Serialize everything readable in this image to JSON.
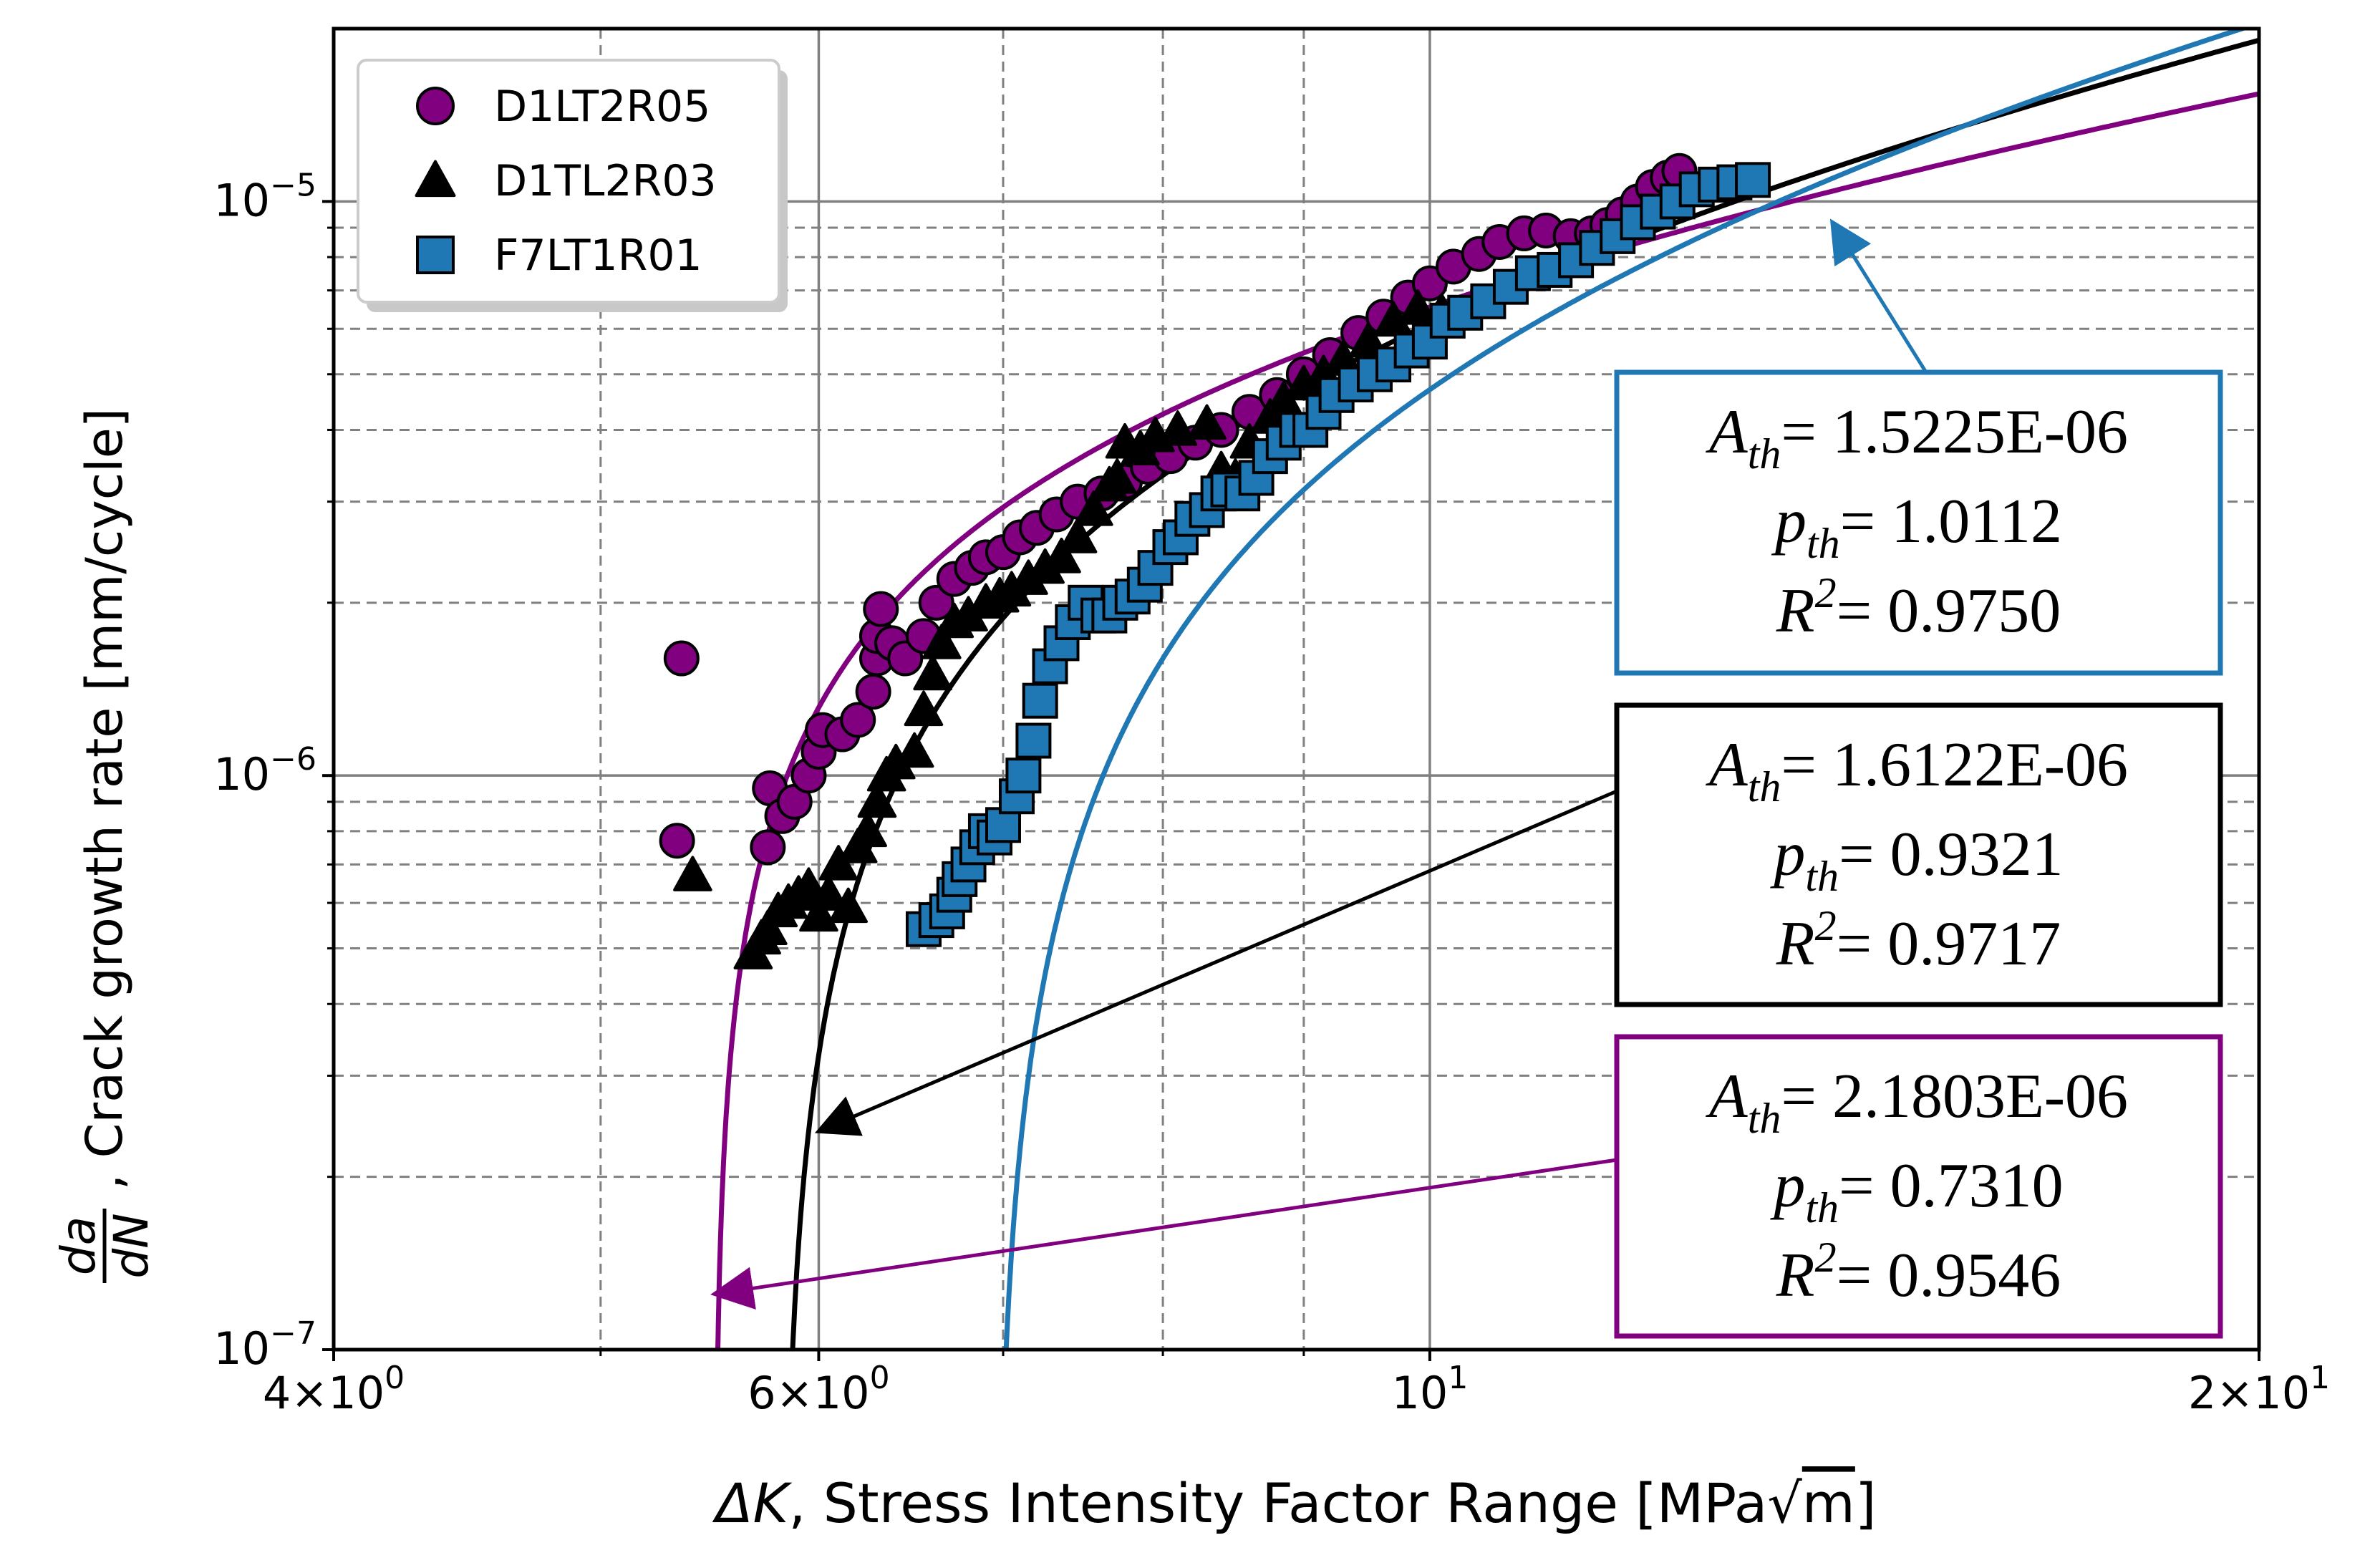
{
  "chart_data": {
    "type": "scatter",
    "xscale": "log",
    "yscale": "log",
    "xlim": [
      4,
      20
    ],
    "ylim": [
      1e-07,
      2e-05
    ],
    "grid": true,
    "legend_position": "top-left",
    "xlabel": {
      "delta": "ΔK",
      "rest": ", Stress Intensity Factor Range [MPa",
      "sqrt": "√",
      "m": "m",
      "close": "]"
    },
    "ylabel": {
      "numerator": "da",
      "denominator": "dN",
      "rest": ", Crack growth rate [mm/cycle]"
    },
    "xticks": [
      {
        "value": 4,
        "mantissa": "4",
        "times": "×",
        "base": "10",
        "exp": "0"
      },
      {
        "value": 6,
        "mantissa": "6",
        "times": "×",
        "base": "10",
        "exp": "0"
      },
      {
        "value": 10,
        "mantissa": "",
        "times": "",
        "base": "10",
        "exp": "1"
      },
      {
        "value": 20,
        "mantissa": "2",
        "times": "×",
        "base": "10",
        "exp": "1"
      }
    ],
    "yticks": [
      {
        "value": 1e-07,
        "base": "10",
        "exp": "−7"
      },
      {
        "value": 1e-06,
        "base": "10",
        "exp": "−6"
      },
      {
        "value": 1e-05,
        "base": "10",
        "exp": "−5"
      }
    ],
    "series": [
      {
        "name": "D1LT2R05",
        "marker": "circle",
        "color": "#800080",
        "points": [
          [
            5.35,
            1.6e-06
          ],
          [
            5.33,
            7.7e-07
          ],
          [
            5.75,
            7.5e-07
          ],
          [
            5.76,
            9.5e-07
          ],
          [
            5.82,
            8.5e-07
          ],
          [
            5.88,
            9e-07
          ],
          [
            5.95,
            1e-06
          ],
          [
            6.0,
            1.1e-06
          ],
          [
            6.02,
            1.2e-06
          ],
          [
            6.12,
            1.18e-06
          ],
          [
            6.2,
            1.25e-06
          ],
          [
            6.28,
            1.4e-06
          ],
          [
            6.3,
            1.6e-06
          ],
          [
            6.3,
            1.75e-06
          ],
          [
            6.32,
            1.95e-06
          ],
          [
            6.38,
            1.7e-06
          ],
          [
            6.45,
            1.6e-06
          ],
          [
            6.55,
            1.75e-06
          ],
          [
            6.62,
            2e-06
          ],
          [
            6.72,
            2.2e-06
          ],
          [
            6.82,
            2.3e-06
          ],
          [
            6.9,
            2.4e-06
          ],
          [
            7.0,
            2.45e-06
          ],
          [
            7.1,
            2.6e-06
          ],
          [
            7.2,
            2.7e-06
          ],
          [
            7.32,
            2.85e-06
          ],
          [
            7.45,
            3e-06
          ],
          [
            7.6,
            3.1e-06
          ],
          [
            7.75,
            3.25e-06
          ],
          [
            7.9,
            3.45e-06
          ],
          [
            8.05,
            3.6e-06
          ],
          [
            8.22,
            3.8e-06
          ],
          [
            8.4,
            4e-06
          ],
          [
            8.6,
            4.3e-06
          ],
          [
            8.8,
            4.6e-06
          ],
          [
            9.0,
            5e-06
          ],
          [
            9.2,
            5.4e-06
          ],
          [
            9.42,
            5.9e-06
          ],
          [
            9.62,
            6.3e-06
          ],
          [
            9.82,
            6.8e-06
          ],
          [
            10.0,
            7.2e-06
          ],
          [
            10.2,
            7.7e-06
          ],
          [
            10.42,
            8.1e-06
          ],
          [
            10.6,
            8.5e-06
          ],
          [
            10.82,
            8.8e-06
          ],
          [
            11.02,
            8.9e-06
          ],
          [
            11.25,
            8.7e-06
          ],
          [
            11.45,
            8.8e-06
          ],
          [
            11.6,
            9.1e-06
          ],
          [
            11.75,
            9.5e-06
          ],
          [
            11.9,
            1e-05
          ],
          [
            12.05,
            1.06e-05
          ],
          [
            12.2,
            1.1e-05
          ],
          [
            12.32,
            1.13e-05
          ]
        ]
      },
      {
        "name": "D1TL2R03",
        "marker": "triangle",
        "color": "#000000",
        "points": [
          [
            5.4,
            6.7e-07
          ],
          [
            5.68,
            4.9e-07
          ],
          [
            5.72,
            5.2e-07
          ],
          [
            5.75,
            5.4e-07
          ],
          [
            5.8,
            5.8e-07
          ],
          [
            5.85,
            6e-07
          ],
          [
            5.9,
            6.2e-07
          ],
          [
            5.95,
            6.4e-07
          ],
          [
            6.0,
            5.7e-07
          ],
          [
            6.05,
            6.2e-07
          ],
          [
            6.1,
            7e-07
          ],
          [
            6.15,
            5.9e-07
          ],
          [
            6.2,
            7.5e-07
          ],
          [
            6.25,
            8e-07
          ],
          [
            6.3,
            9e-07
          ],
          [
            6.35,
            1e-06
          ],
          [
            6.4,
            1.05e-06
          ],
          [
            6.5,
            1.1e-06
          ],
          [
            6.55,
            1.3e-06
          ],
          [
            6.6,
            1.5e-06
          ],
          [
            6.65,
            1.7e-06
          ],
          [
            6.72,
            1.85e-06
          ],
          [
            6.8,
            1.9e-06
          ],
          [
            6.9,
            2e-06
          ],
          [
            6.98,
            2.05e-06
          ],
          [
            7.05,
            2.1e-06
          ],
          [
            7.15,
            2.2e-06
          ],
          [
            7.25,
            2.3e-06
          ],
          [
            7.35,
            2.4e-06
          ],
          [
            7.45,
            2.6e-06
          ],
          [
            7.55,
            2.9e-06
          ],
          [
            7.65,
            3.2e-06
          ],
          [
            7.7,
            3.3e-06
          ],
          [
            7.75,
            3.8e-06
          ],
          [
            7.85,
            3.7e-06
          ],
          [
            7.95,
            3.9e-06
          ],
          [
            8.1,
            4e-06
          ],
          [
            8.3,
            4.1e-06
          ],
          [
            8.4,
            3.4e-06
          ],
          [
            8.5,
            3.3e-06
          ],
          [
            8.6,
            3.8e-06
          ],
          [
            8.75,
            4.2e-06
          ],
          [
            8.85,
            4.5e-06
          ],
          [
            9.0,
            4.8e-06
          ],
          [
            9.15,
            5e-06
          ],
          [
            9.3,
            5.3e-06
          ],
          [
            9.5,
            5.7e-06
          ],
          [
            9.7,
            6.2e-06
          ],
          [
            9.9,
            6.5e-06
          ],
          [
            10.1,
            6.4e-06
          ]
        ]
      },
      {
        "name": "F7LT1R01",
        "marker": "square",
        "color": "#1f77b4",
        "points": [
          [
            6.55,
            5.4e-07
          ],
          [
            6.62,
            5.6e-07
          ],
          [
            6.68,
            5.8e-07
          ],
          [
            6.72,
            6.2e-07
          ],
          [
            6.75,
            6.6e-07
          ],
          [
            6.8,
            7e-07
          ],
          [
            6.85,
            7.5e-07
          ],
          [
            6.9,
            8e-07
          ],
          [
            6.95,
            7.8e-07
          ],
          [
            7.0,
            8.2e-07
          ],
          [
            7.08,
            9.2e-07
          ],
          [
            7.12,
            1e-06
          ],
          [
            7.18,
            1.15e-06
          ],
          [
            7.22,
            1.35e-06
          ],
          [
            7.28,
            1.55e-06
          ],
          [
            7.35,
            1.7e-06
          ],
          [
            7.42,
            1.85e-06
          ],
          [
            7.5,
            2e-06
          ],
          [
            7.58,
            1.9e-06
          ],
          [
            7.65,
            1.9e-06
          ],
          [
            7.72,
            2e-06
          ],
          [
            7.8,
            2.05e-06
          ],
          [
            7.88,
            2.15e-06
          ],
          [
            7.95,
            2.3e-06
          ],
          [
            8.05,
            2.5e-06
          ],
          [
            8.12,
            2.6e-06
          ],
          [
            8.2,
            2.8e-06
          ],
          [
            8.3,
            2.9e-06
          ],
          [
            8.38,
            3.1e-06
          ],
          [
            8.45,
            3.15e-06
          ],
          [
            8.55,
            3.1e-06
          ],
          [
            8.65,
            3.3e-06
          ],
          [
            8.75,
            3.6e-06
          ],
          [
            8.85,
            3.8e-06
          ],
          [
            8.95,
            4e-06
          ],
          [
            9.05,
            4e-06
          ],
          [
            9.15,
            4.3e-06
          ],
          [
            9.25,
            4.6e-06
          ],
          [
            9.4,
            4.8e-06
          ],
          [
            9.55,
            5e-06
          ],
          [
            9.7,
            5.2e-06
          ],
          [
            9.85,
            5.5e-06
          ],
          [
            10.0,
            5.7e-06
          ],
          [
            10.15,
            6.2e-06
          ],
          [
            10.3,
            6.4e-06
          ],
          [
            10.5,
            6.7e-06
          ],
          [
            10.7,
            7.1e-06
          ],
          [
            10.9,
            7.5e-06
          ],
          [
            11.1,
            7.6e-06
          ],
          [
            11.3,
            7.9e-06
          ],
          [
            11.5,
            8.3e-06
          ],
          [
            11.7,
            8.7e-06
          ],
          [
            11.9,
            9.2e-06
          ],
          [
            12.1,
            9.6e-06
          ],
          [
            12.3,
            1e-05
          ],
          [
            12.5,
            1.05e-05
          ],
          [
            12.7,
            1.07e-05
          ],
          [
            12.9,
            1.08e-05
          ],
          [
            13.1,
            1.09e-05
          ]
        ]
      }
    ],
    "fits": [
      {
        "series": "D1LT2R05",
        "color": "#800080",
        "A": 2.1803e-06,
        "p": 0.731,
        "threshold": 5.5,
        "A_text": "2.1803E-06",
        "p_text": "0.7310",
        "r2_text": "0.9546"
      },
      {
        "series": "D1TL2R03",
        "color": "#000000",
        "A": 1.6122e-06,
        "p": 0.9321,
        "threshold": 5.82,
        "A_text": "1.6122E-06",
        "p_text": "0.9321",
        "r2_text": "0.9717"
      },
      {
        "series": "F7LT1R01",
        "color": "#1f77b4",
        "A": 1.5225e-06,
        "p": 1.0112,
        "threshold": 6.95,
        "A_text": "1.5225E-06",
        "p_text": "1.0112",
        "r2_text": "0.9750"
      }
    ],
    "annotations": {
      "A_symbol": "A",
      "p_symbol": "p",
      "subscript": "th",
      "R_symbol": "R",
      "R_exp": "2",
      "equals": "= ",
      "boxes": [
        {
          "fit": 2,
          "color": "#1f77b4",
          "arrow_to": [
            14.0,
            9.2e-06
          ]
        },
        {
          "fit": 1,
          "color": "#000000",
          "arrow_to": [
            6.0,
            2.4e-07
          ]
        },
        {
          "fit": 0,
          "color": "#800080",
          "arrow_to": [
            5.5,
            1.25e-07
          ]
        }
      ]
    }
  }
}
